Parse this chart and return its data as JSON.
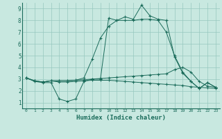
{
  "title": "",
  "xlabel": "Humidex (Indice chaleur)",
  "background_color": "#c8e8e0",
  "grid_color": "#96c8be",
  "line_color": "#1a6b5a",
  "xlim": [
    -0.5,
    23.5
  ],
  "ylim": [
    0.5,
    9.5
  ],
  "xticks": [
    0,
    1,
    2,
    3,
    4,
    5,
    6,
    7,
    8,
    9,
    10,
    11,
    12,
    13,
    14,
    15,
    16,
    17,
    18,
    19,
    20,
    21,
    22,
    23
  ],
  "yticks": [
    1,
    2,
    3,
    4,
    5,
    6,
    7,
    8,
    9
  ],
  "series": [
    [
      3.1,
      2.8,
      2.7,
      2.7,
      1.3,
      1.1,
      1.3,
      2.8,
      3.0,
      3.0,
      8.2,
      8.0,
      8.3,
      8.1,
      9.3,
      8.4,
      8.1,
      8.0,
      4.9,
      3.5,
      2.8,
      2.2,
      2.7,
      2.3
    ],
    [
      3.1,
      2.85,
      2.75,
      2.85,
      2.85,
      2.85,
      2.9,
      2.95,
      3.0,
      3.05,
      3.1,
      3.15,
      3.2,
      3.25,
      3.3,
      3.35,
      3.4,
      3.45,
      3.8,
      4.0,
      3.6,
      2.8,
      2.4,
      2.3
    ],
    [
      3.1,
      2.85,
      2.75,
      2.85,
      2.75,
      2.75,
      2.8,
      2.85,
      2.9,
      2.9,
      2.9,
      2.85,
      2.8,
      2.75,
      2.7,
      2.65,
      2.6,
      2.55,
      2.5,
      2.45,
      2.35,
      2.3,
      2.25,
      2.2
    ],
    [
      3.1,
      2.85,
      2.75,
      2.85,
      2.85,
      2.85,
      2.9,
      3.1,
      4.7,
      6.5,
      7.5,
      8.0,
      8.0,
      8.0,
      8.1,
      8.1,
      8.0,
      7.0,
      5.0,
      3.6,
      2.8,
      2.2,
      2.7,
      2.3
    ]
  ]
}
